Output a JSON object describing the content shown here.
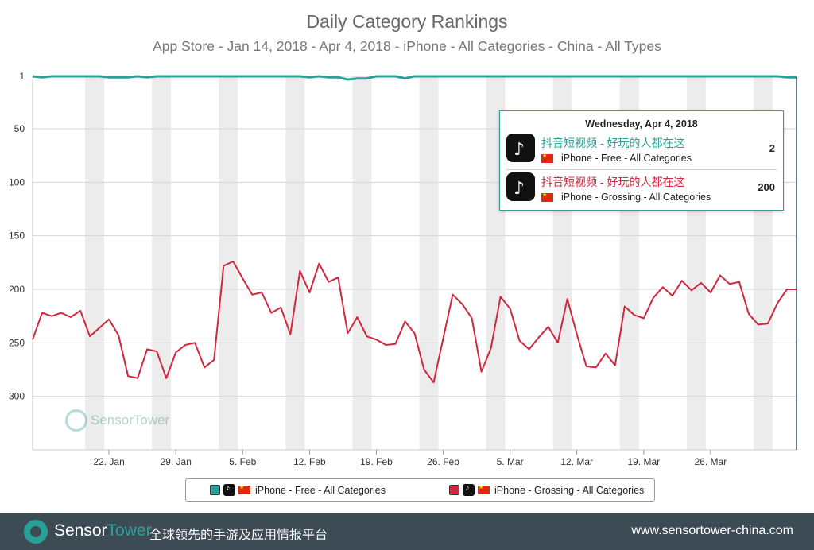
{
  "header": {
    "title": "Daily Category Rankings",
    "subtitle": "App Store - Jan 14, 2018 - Apr 4, 2018 - iPhone - All Categories - China - All Types"
  },
  "tooltip": {
    "date": "Wednesday, Apr 4, 2018",
    "rows": [
      {
        "app": "抖音短视频 - 好玩的人都在这",
        "detail": "iPhone - Free - All Categories",
        "value": "2",
        "color": "#2aa198"
      },
      {
        "app": "抖音短视频 - 好玩的人都在这",
        "detail": "iPhone - Grossing - All Categories",
        "value": "200",
        "color": "#d0273e"
      }
    ]
  },
  "legend": {
    "free": "iPhone - Free - All Categories",
    "grossing": "iPhone - Grossing - All Categories"
  },
  "watermark": "SensorTower",
  "footer": {
    "brand_a": "Sensor",
    "brand_b": "Tower",
    "tagline": "全球领先的手游及应用情报平台",
    "url": "www.sensortower-china.com"
  },
  "chart_data": {
    "type": "line",
    "title": "Daily Category Rankings",
    "xlabel": "",
    "ylabel": "",
    "y_inverted": true,
    "ylim": [
      1,
      350
    ],
    "yticks": [
      1,
      50,
      100,
      150,
      200,
      250,
      300
    ],
    "x_start": "2018-01-14",
    "x_end": "2018-04-04",
    "xticks": [
      "22. Jan",
      "29. Jan",
      "5. Feb",
      "12. Feb",
      "19. Feb",
      "26. Feb",
      "5. Mar",
      "12. Mar",
      "19. Mar",
      "26. Mar"
    ],
    "grid": true,
    "series": [
      {
        "name": "iPhone - Free - All Categories",
        "color": "#2aa198",
        "values": [
          1,
          2,
          1,
          1,
          1,
          1,
          1,
          1,
          2,
          2,
          2,
          1,
          2,
          1,
          1,
          1,
          1,
          1,
          1,
          1,
          1,
          1,
          1,
          1,
          1,
          1,
          1,
          1,
          1,
          2,
          1,
          2,
          2,
          4,
          3,
          3,
          1,
          1,
          1,
          3,
          1,
          1,
          1,
          1,
          1,
          1,
          1,
          1,
          1,
          1,
          1,
          1,
          1,
          1,
          1,
          1,
          1,
          1,
          1,
          1,
          1,
          1,
          1,
          1,
          1,
          1,
          1,
          1,
          1,
          1,
          1,
          1,
          1,
          1,
          1,
          1,
          1,
          1,
          1,
          2,
          2
        ]
      },
      {
        "name": "iPhone - Grossing - All Categories",
        "color": "#d0273e",
        "values": [
          247,
          222,
          225,
          222,
          226,
          220,
          244,
          236,
          228,
          243,
          281,
          283,
          256,
          258,
          283,
          259,
          252,
          250,
          273,
          266,
          178,
          174,
          190,
          205,
          203,
          222,
          217,
          242,
          183,
          203,
          176,
          193,
          189,
          241,
          226,
          244,
          247,
          252,
          251,
          230,
          241,
          275,
          287,
          246,
          205,
          214,
          227,
          277,
          255,
          207,
          218,
          248,
          256,
          245,
          235,
          250,
          209,
          242,
          272,
          273,
          260,
          271,
          216,
          224,
          227,
          208,
          198,
          206,
          192,
          201,
          194,
          203,
          187,
          195,
          193,
          223,
          233,
          232,
          213,
          200,
          200
        ]
      }
    ]
  }
}
